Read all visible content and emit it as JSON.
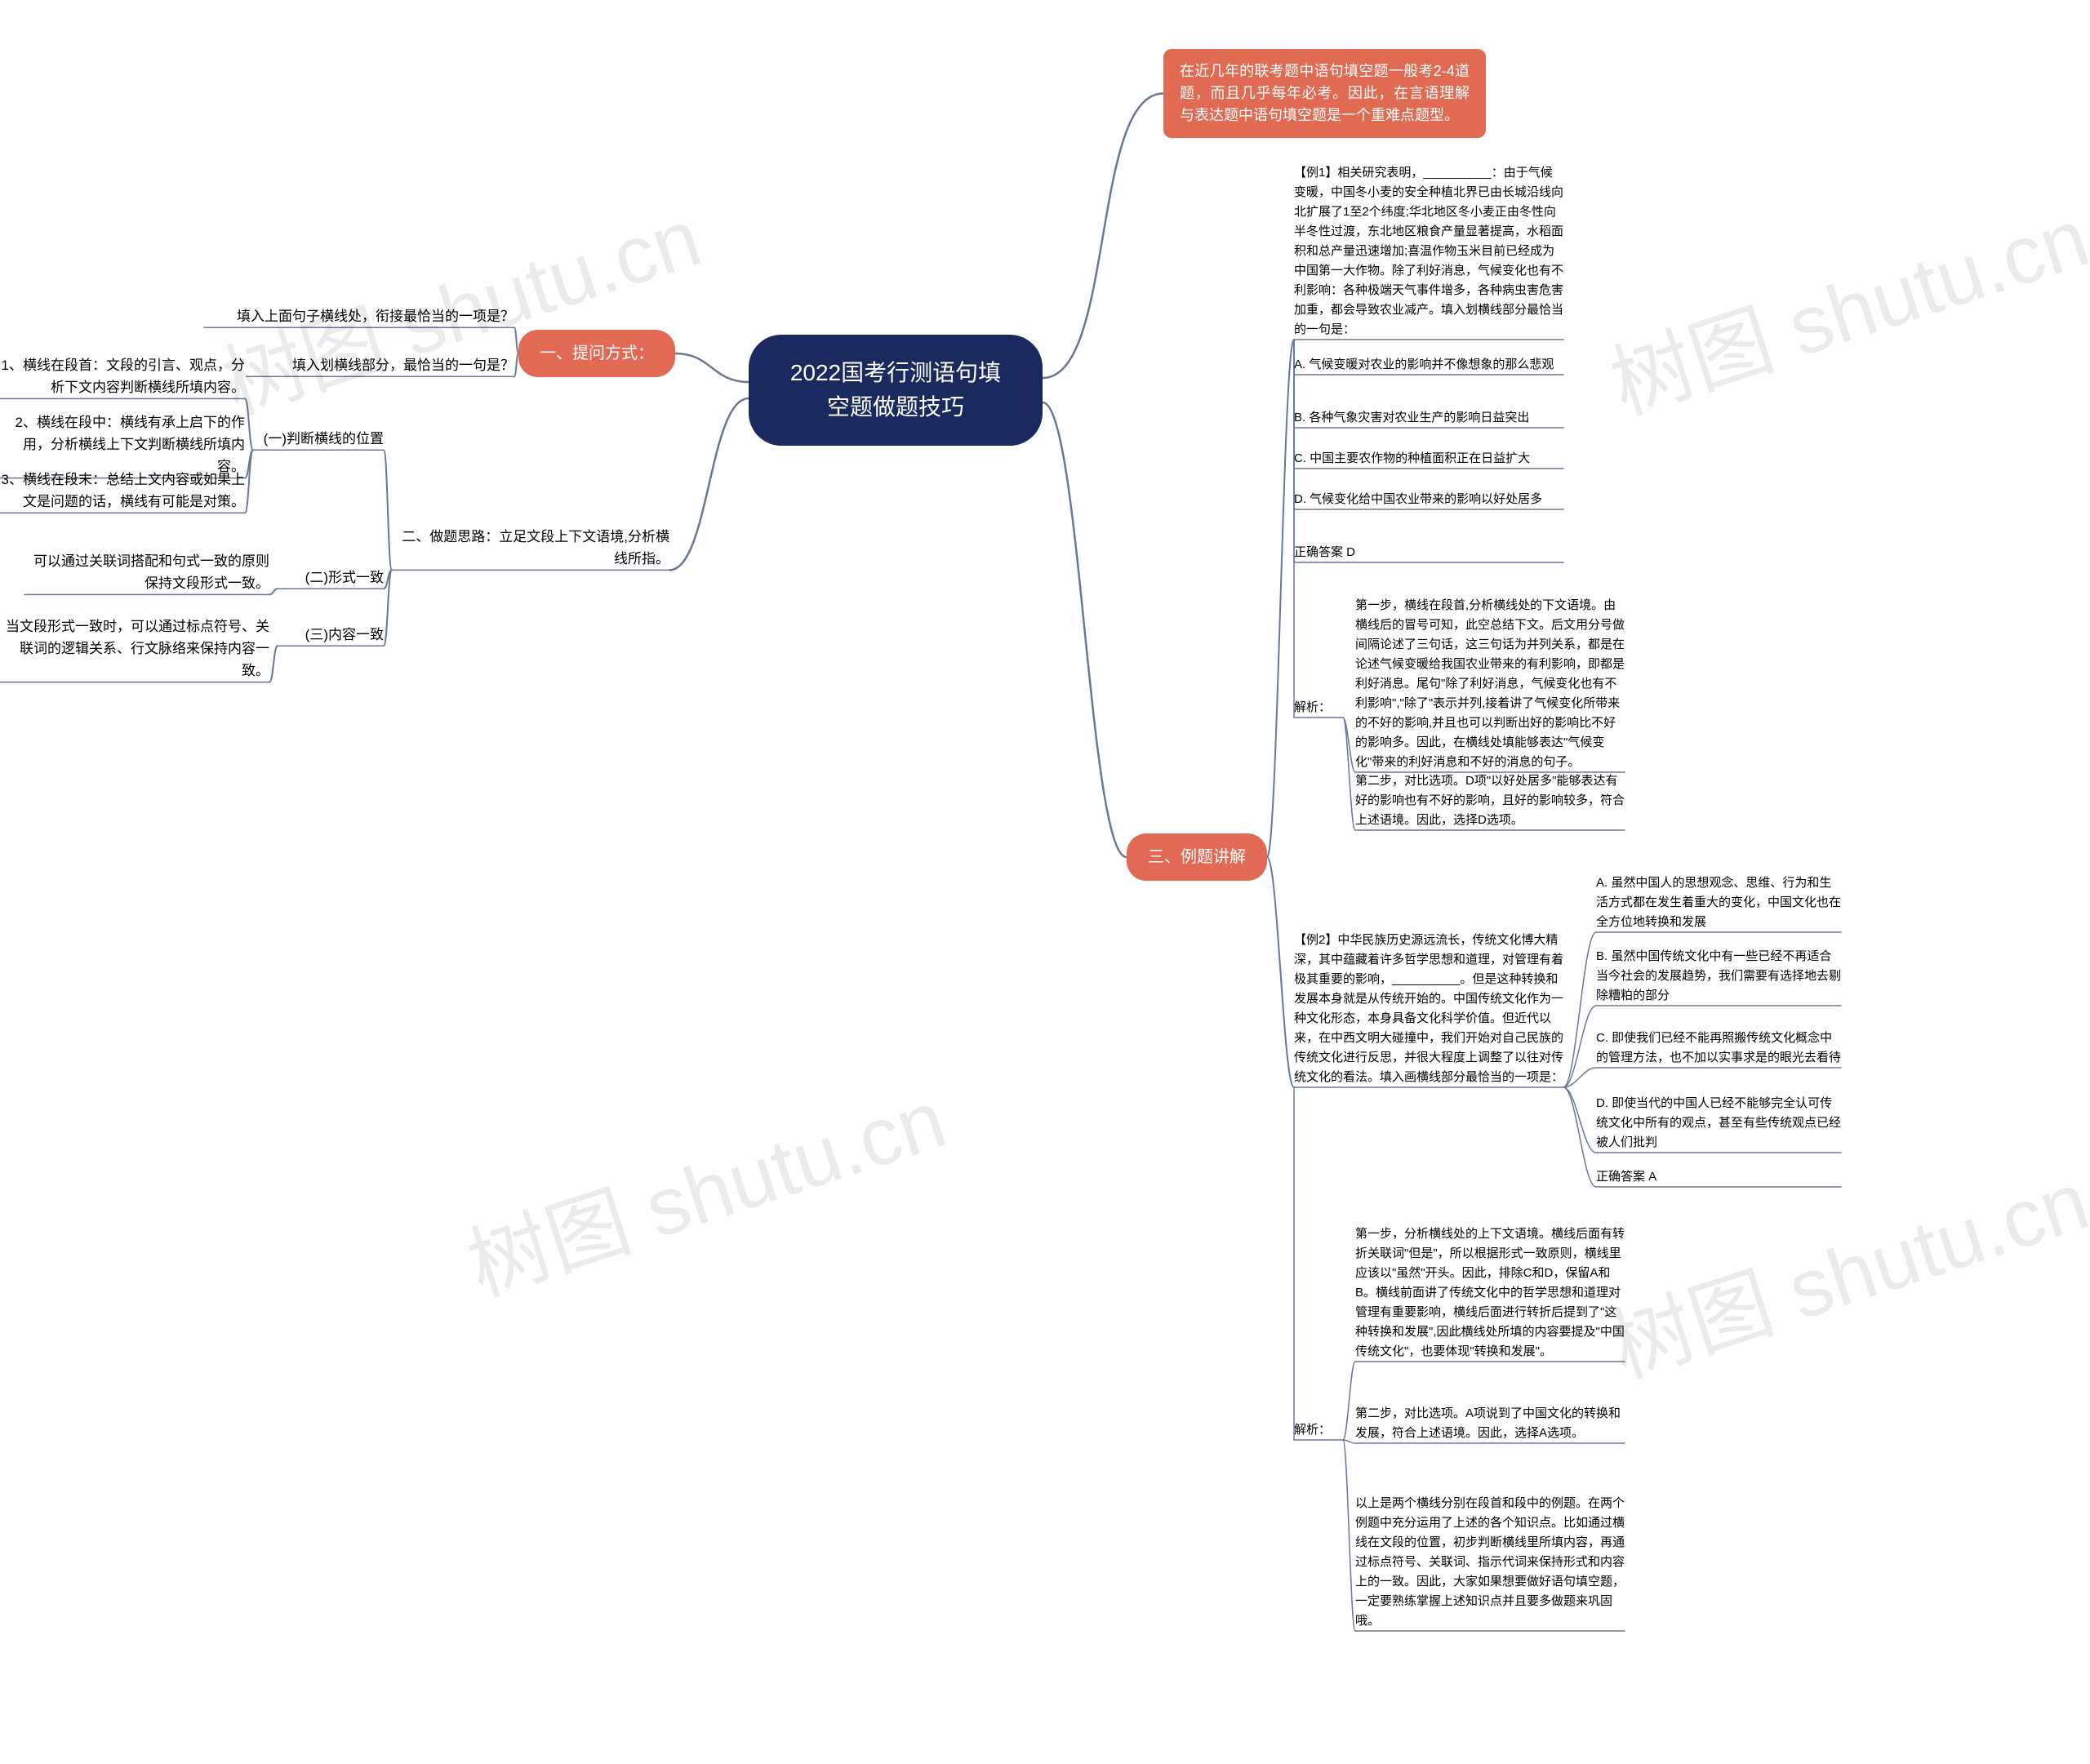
{
  "colors": {
    "center_bg": "#1a2a5e",
    "pill_red": "#e26a54",
    "pill_dark": "#102a43",
    "rect_bg": "#e06a52",
    "edge": "#6b788e",
    "text_dark": "#000000",
    "text_light": "#ffffff",
    "background": "#ffffff",
    "watermark": "rgba(0,0,0,0.08)"
  },
  "watermark_text": "树图 shutu.cn",
  "center": {
    "title": "2022国考行测语句填空题做题技巧"
  },
  "intro": "在近几年的联考题中语句填空题一般考2-4道题，而且几乎每年必考。因此，在言语理解与表达题中语句填空题是一个重难点题型。",
  "section1": {
    "label": "一、提问方式：",
    "a": "填入上面句子横线处，衔接最恰当的一项是？",
    "b": "填入划横线部分，最恰当的一句是？"
  },
  "section2": {
    "label": "二、做题思路：立足文段上下文语境,分析横线所指。",
    "sub1": {
      "label": "(一)判断横线的位置",
      "a": "1、横线在段首：文段的引言、观点，分析下文内容判断横线所填内容。",
      "b": "2、横线在段中：横线有承上启下的作用，分析横线上下文判断横线所填内容。",
      "c": "3、横线在段末：总结上文内容或如果上文是问题的话，横线有可能是对策。"
    },
    "sub2": {
      "label": "(二)形式一致",
      "a": "可以通过关联词搭配和句式一致的原则保持文段形式一致。"
    },
    "sub3": {
      "label": "(三)内容一致",
      "a": "当文段形式一致时，可以通过标点符号、关联词的逻辑关系、行文脉络来保持内容一致。"
    }
  },
  "section3": {
    "label": "三、例题讲解",
    "ex1": {
      "q": "【例1】相关研究表明，__________：由于气候变暖，中国冬小麦的安全种植北界已由长城沿线向北扩展了1至2个纬度;华北地区冬小麦正由冬性向半冬性过渡，东北地区粮食产量显著提高，水稻面积和总产量迅速增加;喜温作物玉米目前已经成为中国第一大作物。除了利好消息，气候变化也有不利影响：各种极端天气事件增多，各种病虫害危害加重，都会导致农业减产。填入划横线部分最恰当的一句是：",
      "a": "A. 气候变暖对农业的影响并不像想象的那么悲观",
      "b": "B. 各种气象灾害对农业生产的影响日益突出",
      "c": "C. 中国主要农作物的种植面积正在日益扩大",
      "d": "D. 气候变化给中国农业带来的影响以好处居多",
      "ans": "正确答案 D",
      "ana_label": "解析：",
      "ana1": "第一步，横线在段首,分析横线处的下文语境。由横线后的冒号可知，此空总结下文。后文用分号做间隔论述了三句话，这三句话为并列关系，都是在论述气候变暖给我国农业带来的有利影响，即都是利好消息。尾句\"除了利好消息，气候变化也有不利影响\",\"除了\"表示并列,接着讲了气候变化所带来的不好的影响,并且也可以判断出好的影响比不好的影响多。因此，在横线处填能够表达\"气候变化\"带来的利好消息和不好的消息的句子。",
      "ana2": "第二步，对比选项。D项\"以好处居多\"能够表达有好的影响也有不好的影响，且好的影响较多，符合上述语境。因此，选择D选项。"
    },
    "ex2": {
      "q": "【例2】中华民族历史源远流长，传统文化博大精深，其中蕴藏着许多哲学思想和道理，对管理有着极其重要的影响，__________。但是这种转换和发展本身就是从传统开始的。中国传统文化作为一种文化形态，本身具备文化科学价值。但近代以来，在中西文明大碰撞中，我们开始对自己民族的传统文化进行反思，并很大程度上调整了以往对传统文化的看法。填入画横线部分最恰当的一项是：",
      "a": "A. 虽然中国人的思想观念、思维、行为和生活方式都在发生着重大的变化，中国文化也在全方位地转换和发展",
      "b": "B. 虽然中国传统文化中有一些已经不再适合当今社会的发展趋势，我们需要有选择地去剔除糟粕的部分",
      "c": "C. 即使我们已经不能再照搬传统文化概念中的管理方法，也不加以实事求是的眼光去看待",
      "d": "D. 即使当代的中国人已经不能够完全认可传统文化中所有的观点，甚至有些传统观点已经被人们批判",
      "ans": "正确答案 A",
      "ana_label": "解析：",
      "ana1": "第一步，分析横线处的上下文语境。横线后面有转折关联词\"但是\"，所以根据形式一致原则，横线里应该以\"虽然\"开头。因此，排除C和D，保留A和B。横线前面讲了传统文化中的哲学思想和道理对管理有重要影响，横线后面进行转折后提到了\"这种转换和发展\",因此横线处所填的内容要提及\"中国传统文化\"，也要体现\"转换和发展\"。",
      "ana2": "第二步，对比选项。A项说到了中国文化的转换和发展，符合上述语境。因此，选择A选项。",
      "ana3": "以上是两个横线分别在段首和段中的例题。在两个例题中充分运用了上述的各个知识点。比如通过横线在文段的位置，初步判断横线里所填内容，再通过标点符号、关联词、指示代词来保持形式和内容上的一致。因此，大家如果想要做好语句填空题，一定要熟练掌握上述知识点并且要多做题来巩固哦。"
    }
  }
}
